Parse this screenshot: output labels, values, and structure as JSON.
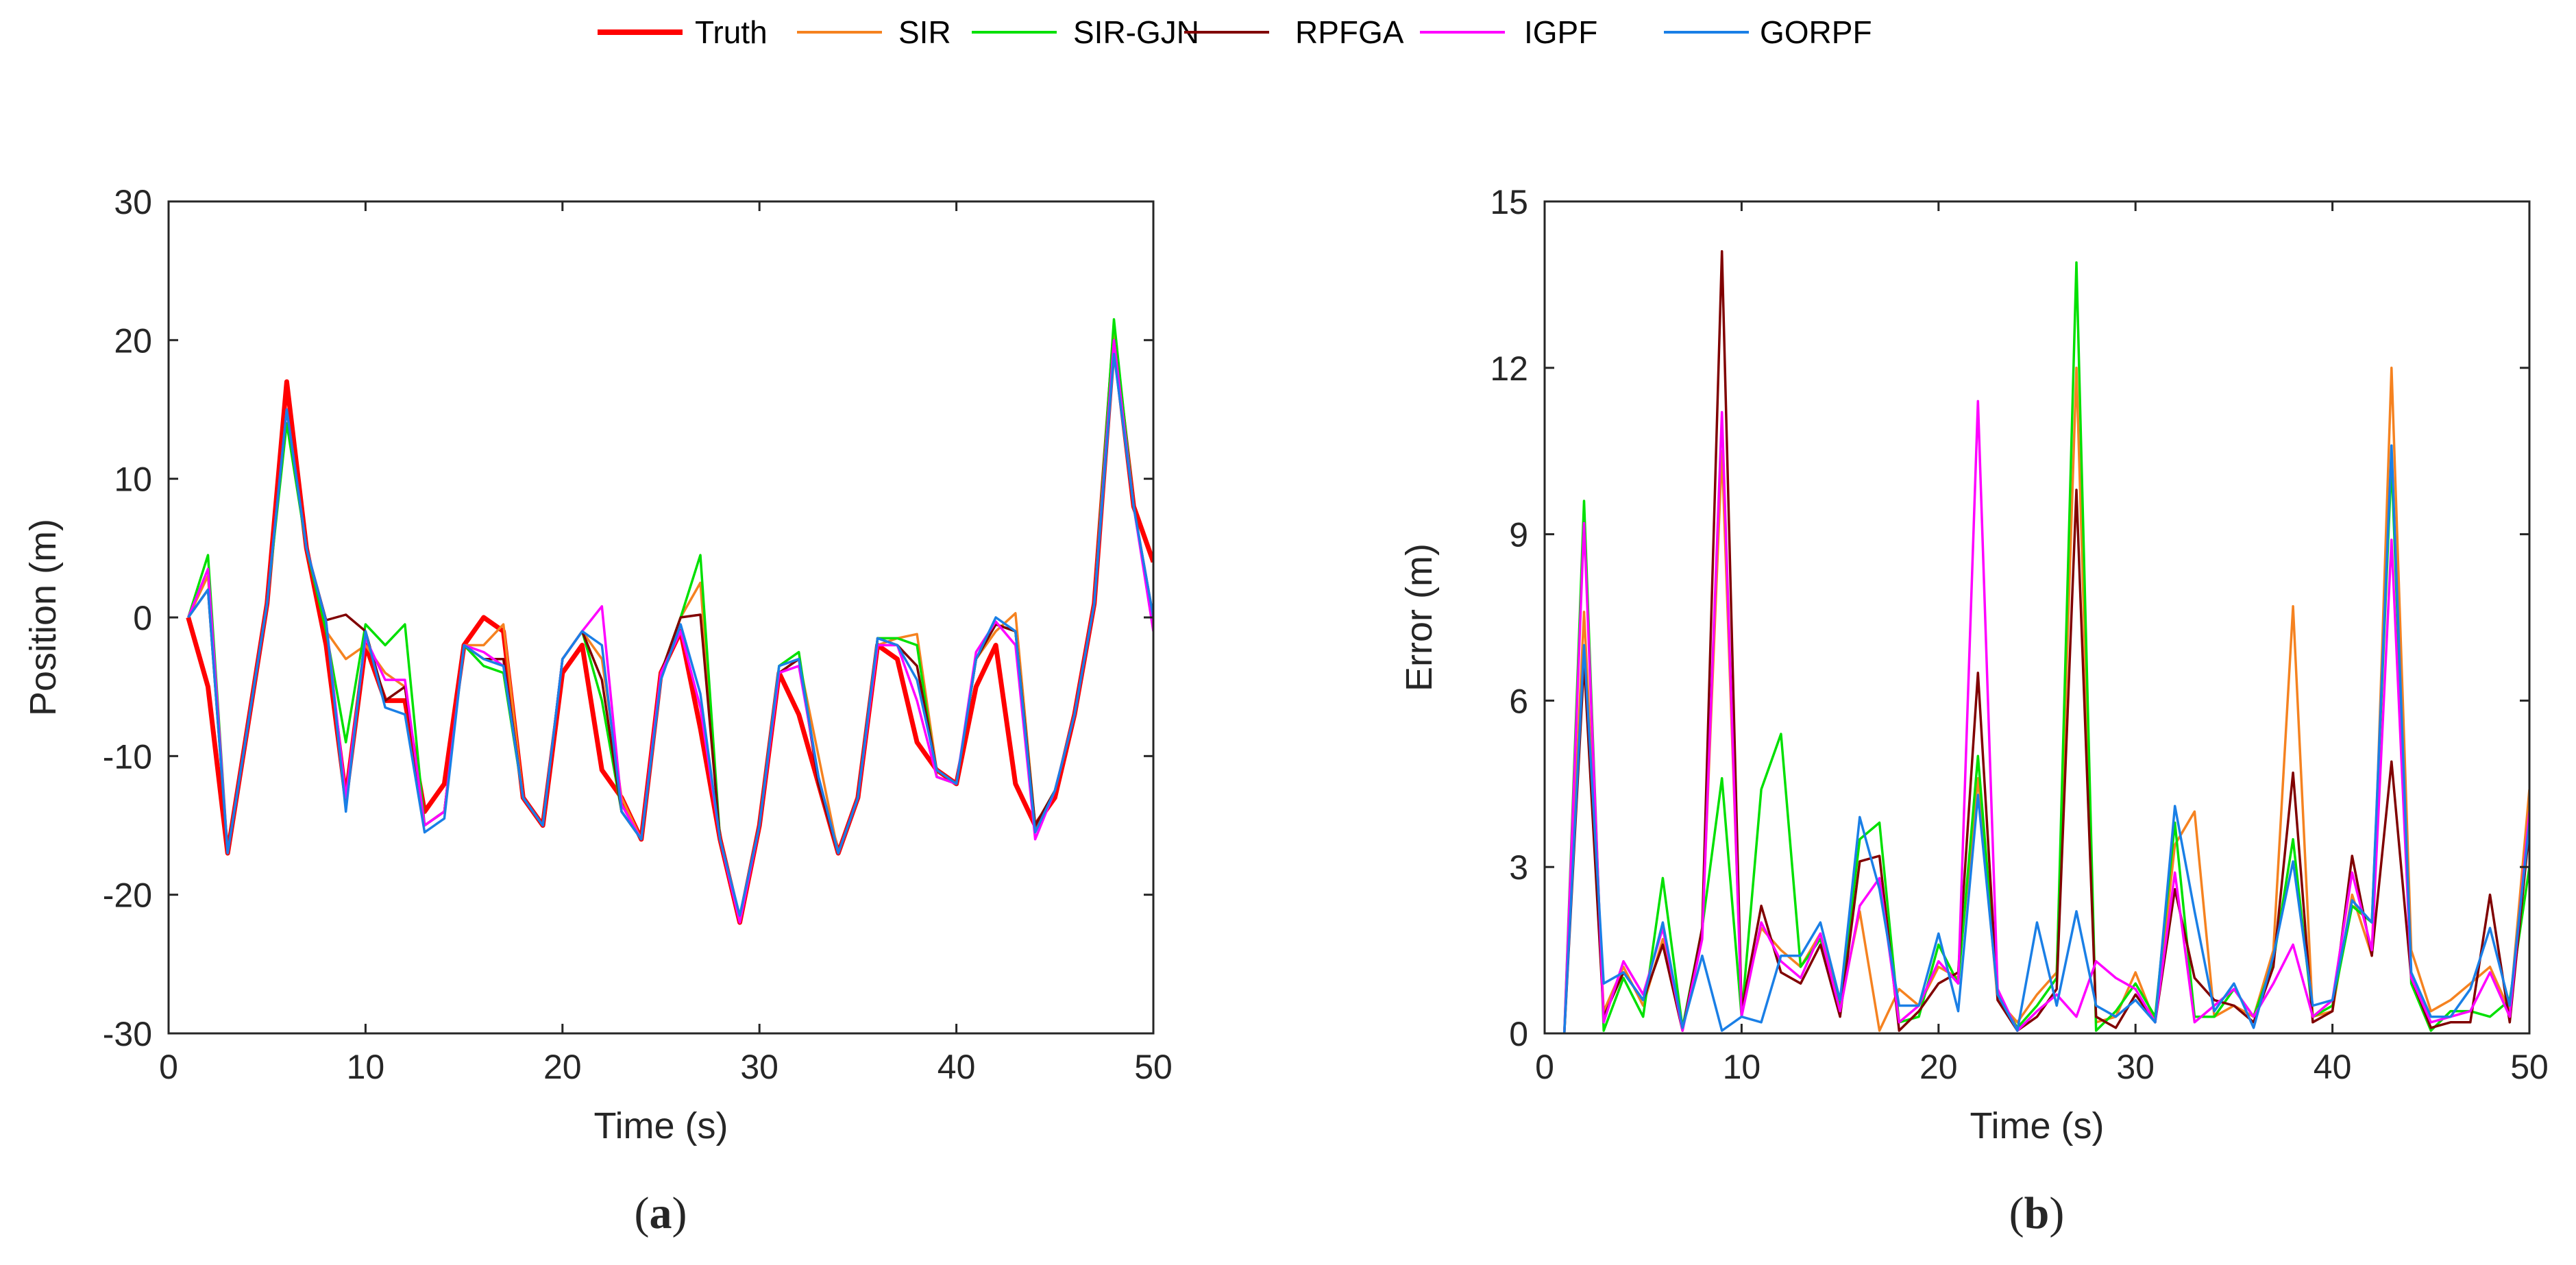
{
  "legend": [
    {
      "name": "Truth",
      "color": "#ff0000"
    },
    {
      "name": "SIR",
      "color": "#f58220"
    },
    {
      "name": "SIR-GJN",
      "color": "#00e000"
    },
    {
      "name": "RPFGA",
      "color": "#800000"
    },
    {
      "name": "IGPF",
      "color": "#ff00ff"
    },
    {
      "name": "GORPF",
      "color": "#1a7fe6"
    }
  ],
  "chart_data": [
    {
      "type": "line",
      "panel_label": "a",
      "xlabel": "Time (s)",
      "ylabel": "Position (m)",
      "xlim": [
        0,
        50
      ],
      "ylim": [
        -30,
        30
      ],
      "xticks": [
        0,
        10,
        20,
        30,
        40,
        50
      ],
      "yticks": [
        -30,
        -20,
        -10,
        0,
        10,
        20,
        30
      ],
      "x": [
        1,
        2,
        3,
        4,
        5,
        6,
        7,
        8,
        9,
        10,
        11,
        12,
        13,
        14,
        15,
        16,
        17,
        18,
        19,
        20,
        21,
        22,
        23,
        24,
        25,
        26,
        27,
        28,
        29,
        30,
        31,
        32,
        33,
        34,
        35,
        36,
        37,
        38,
        39,
        40,
        41,
        42,
        43,
        44,
        45,
        46,
        47,
        48,
        49,
        50
      ],
      "series": [
        {
          "name": "Truth",
          "color": "#ff0000",
          "values": [
            0,
            -5,
            -17,
            -8,
            1,
            17,
            5,
            -2,
            -13,
            -2,
            -6,
            -6,
            -14,
            -12,
            -2,
            0,
            -1,
            -13,
            -15,
            -4,
            -2,
            -11,
            -13,
            -16,
            -4,
            -1,
            -8,
            -16,
            -22,
            -15,
            -4,
            -7,
            -12,
            -17,
            -13,
            -2,
            -3,
            -9,
            -11,
            -12,
            -5,
            -2,
            -12,
            -15,
            -13,
            -7,
            1,
            20,
            8,
            4
          ]
        },
        {
          "name": "SIR",
          "color": "#f58220",
          "values": [
            0,
            3,
            -17,
            -8,
            1,
            15,
            5,
            -1,
            -3,
            -2,
            -4,
            -5,
            -15,
            -14,
            -2,
            -2,
            -0.5,
            -13,
            -15,
            -3,
            -1,
            -3,
            -13,
            -16,
            -4,
            0,
            2.5,
            -16,
            -22,
            -15,
            -4,
            -3,
            -10,
            -17,
            -13,
            -2,
            -1.5,
            -1.2,
            -11,
            -12,
            -3,
            -1,
            0.3,
            -15,
            -12.5,
            -7,
            1,
            21,
            8,
            -0.5
          ]
        },
        {
          "name": "SIR-GJN",
          "color": "#00e000",
          "values": [
            0,
            4.5,
            -17,
            -8,
            1,
            14,
            5,
            -1,
            -9,
            -0.5,
            -2,
            -0.5,
            -15,
            -14,
            -2,
            -3.5,
            -4,
            -13,
            -15,
            -3,
            -1,
            -6,
            -14,
            -16,
            -4,
            0,
            4.5,
            -16,
            -22,
            -15,
            -3.5,
            -2.5,
            -12,
            -17,
            -13,
            -1.5,
            -1.5,
            -2,
            -11.5,
            -12,
            -3,
            -0.5,
            -1,
            -15,
            -12.5,
            -7,
            1,
            21.5,
            8,
            -0.5
          ]
        },
        {
          "name": "RPFGA",
          "color": "#800000",
          "values": [
            0,
            2,
            -17,
            -8,
            1,
            15,
            5,
            -0.2,
            0.2,
            -1,
            -6,
            -5,
            -15,
            -14,
            -2,
            -3,
            -3,
            -13,
            -15,
            -3,
            -1,
            -4.5,
            -14,
            -16,
            -4,
            0,
            0.2,
            -16,
            -22,
            -15,
            -4,
            -3,
            -12,
            -17,
            -13,
            -1.5,
            -2,
            -3.5,
            -11,
            -12,
            -3,
            -0.5,
            -1,
            -15,
            -12.5,
            -7,
            1,
            20,
            8,
            0
          ]
        },
        {
          "name": "IGPF",
          "color": "#ff00ff",
          "values": [
            0,
            3.5,
            -17,
            -8,
            1,
            15,
            5,
            -0.3,
            -13,
            -1.5,
            -4.5,
            -4.5,
            -15,
            -14,
            -2,
            -2.5,
            -3.5,
            -13,
            -15,
            -3,
            -1,
            0.8,
            -13.5,
            -16,
            -4,
            -1,
            -6.5,
            -16,
            -22,
            -15,
            -4,
            -3.5,
            -11.5,
            -17,
            -13,
            -2,
            -2,
            -6,
            -11.5,
            -12,
            -2.5,
            -0.3,
            -2,
            -16,
            -12.5,
            -7,
            1,
            20,
            8,
            -1
          ]
        },
        {
          "name": "GORPF",
          "color": "#1a7fe6",
          "values": [
            0,
            2,
            -17,
            -8,
            1,
            15,
            5,
            -0.3,
            -14,
            -1,
            -6.5,
            -7,
            -15.5,
            -14.5,
            -2,
            -3,
            -3.5,
            -13,
            -15,
            -3,
            -1,
            -2,
            -14,
            -16,
            -4.5,
            -0.5,
            -5.5,
            -16,
            -21.5,
            -15,
            -3.5,
            -3,
            -11.5,
            -17,
            -13,
            -1.5,
            -2,
            -4.5,
            -11,
            -12,
            -3,
            0,
            -1,
            -15.5,
            -12.5,
            -7,
            1,
            19,
            8,
            0
          ]
        }
      ]
    },
    {
      "type": "line",
      "panel_label": "b",
      "xlabel": "Time (s)",
      "ylabel": "Error (m)",
      "xlim": [
        0,
        50
      ],
      "ylim": [
        0,
        15
      ],
      "xticks": [
        0,
        10,
        20,
        30,
        40,
        50
      ],
      "yticks": [
        0,
        3,
        6,
        9,
        12,
        15
      ],
      "x": [
        1,
        2,
        3,
        4,
        5,
        6,
        7,
        8,
        9,
        10,
        11,
        12,
        13,
        14,
        15,
        16,
        17,
        18,
        19,
        20,
        21,
        22,
        23,
        24,
        25,
        26,
        27,
        28,
        29,
        30,
        31,
        32,
        33,
        34,
        35,
        36,
        37,
        38,
        39,
        40,
        41,
        42,
        43,
        44,
        45,
        46,
        47,
        48,
        49,
        50
      ],
      "series": [
        {
          "name": "SIR",
          "color": "#f58220",
          "values": [
            0,
            7.6,
            0.4,
            1.2,
            0.5,
            1.7,
            0.1,
            1.8,
            10.5,
            0.5,
            1.9,
            1.5,
            1.2,
            1.8,
            0.5,
            2.2,
            0.05,
            0.8,
            0.5,
            1.2,
            1.0,
            4.6,
            0.6,
            0.2,
            0.7,
            1.1,
            12.0,
            0.2,
            0.3,
            1.1,
            0.2,
            3.4,
            4.0,
            0.3,
            0.5,
            0.3,
            1.5,
            7.7,
            0.3,
            0.4,
            2.5,
            1.4,
            12.0,
            1.5,
            0.4,
            0.6,
            0.9,
            1.2,
            0.4,
            4.4
          ]
        },
        {
          "name": "SIR-GJN",
          "color": "#00e000",
          "values": [
            0,
            9.6,
            0.05,
            1.0,
            0.3,
            2.8,
            0.1,
            1.9,
            4.6,
            0.3,
            4.4,
            5.4,
            1.2,
            1.7,
            0.5,
            3.5,
            3.8,
            0.2,
            0.3,
            1.6,
            0.9,
            5.0,
            0.7,
            0.1,
            0.5,
            1.0,
            13.9,
            0.05,
            0.4,
            0.9,
            0.3,
            3.8,
            0.3,
            0.3,
            0.8,
            0.3,
            1.3,
            3.5,
            0.3,
            0.5,
            2.3,
            2.0,
            10.3,
            0.9,
            0.05,
            0.4,
            0.4,
            0.3,
            0.6,
            3.0
          ]
        },
        {
          "name": "RPFGA",
          "color": "#800000",
          "values": [
            0,
            6.7,
            0.3,
            1.1,
            0.6,
            1.6,
            0.05,
            1.9,
            14.1,
            0.4,
            2.3,
            1.1,
            0.9,
            1.6,
            0.3,
            3.1,
            3.2,
            0.05,
            0.4,
            0.9,
            1.1,
            6.5,
            0.6,
            0.05,
            0.3,
            0.8,
            9.8,
            0.3,
            0.1,
            0.7,
            0.2,
            2.6,
            1.0,
            0.6,
            0.5,
            0.2,
            1.2,
            4.7,
            0.2,
            0.4,
            3.2,
            1.4,
            4.9,
            1.0,
            0.1,
            0.2,
            0.2,
            2.5,
            0.2,
            3.7
          ]
        },
        {
          "name": "IGPF",
          "color": "#ff00ff",
          "values": [
            0,
            9.2,
            0.2,
            1.3,
            0.7,
            1.9,
            0.05,
            1.7,
            11.2,
            0.3,
            2.0,
            1.3,
            1.0,
            1.8,
            0.4,
            2.3,
            2.8,
            0.2,
            0.5,
            1.3,
            0.9,
            11.4,
            0.8,
            0.05,
            0.4,
            0.7,
            0.3,
            1.3,
            1.0,
            0.8,
            0.2,
            2.9,
            0.2,
            0.5,
            0.8,
            0.3,
            0.9,
            1.6,
            0.3,
            0.6,
            2.9,
            1.5,
            8.9,
            1.0,
            0.2,
            0.3,
            0.4,
            1.1,
            0.3,
            4.0
          ]
        },
        {
          "name": "GORPF",
          "color": "#1a7fe6",
          "values": [
            0,
            7.0,
            0.9,
            1.1,
            0.6,
            2.0,
            0.1,
            1.4,
            0.05,
            0.3,
            0.2,
            1.4,
            1.4,
            2.0,
            0.6,
            3.9,
            2.6,
            0.5,
            0.5,
            1.8,
            0.4,
            4.3,
            0.7,
            0.05,
            2.0,
            0.5,
            2.2,
            0.5,
            0.3,
            0.6,
            0.2,
            4.1,
            2.2,
            0.4,
            0.9,
            0.1,
            1.4,
            3.1,
            0.5,
            0.6,
            2.4,
            2.0,
            10.6,
            1.1,
            0.3,
            0.3,
            0.8,
            1.9,
            0.5,
            3.8
          ]
        }
      ]
    }
  ]
}
